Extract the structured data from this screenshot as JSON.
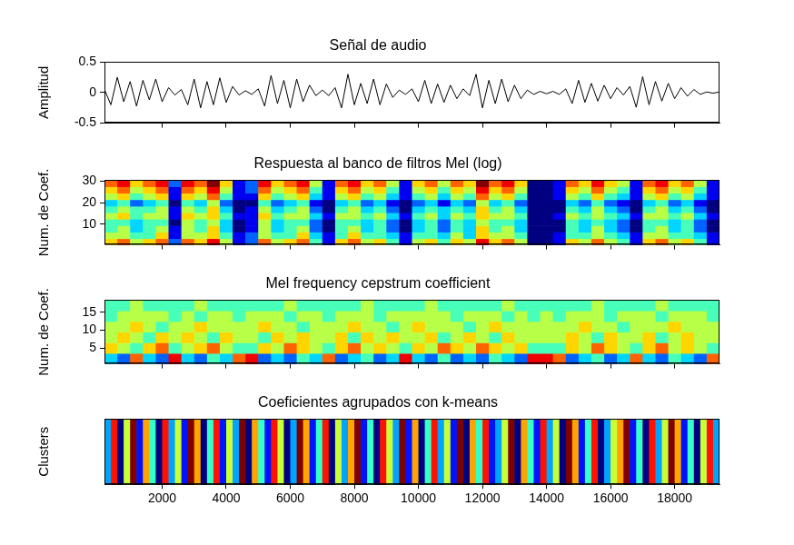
{
  "chart_data": [
    {
      "type": "line",
      "title": "Señal de audio",
      "y_label": "Amplitud",
      "color": "#000000",
      "x": [
        200,
        400,
        600,
        800,
        1000,
        1200,
        1400,
        1600,
        1800,
        2000,
        2200,
        2400,
        2600,
        2800,
        3000,
        3200,
        3400,
        3600,
        3800,
        4000,
        4200,
        4400,
        4600,
        4800,
        5000,
        5200,
        5400,
        5600,
        5800,
        6000,
        6200,
        6400,
        6600,
        6800,
        7000,
        7200,
        7400,
        7600,
        7800,
        8000,
        8200,
        8400,
        8600,
        8800,
        9000,
        9200,
        9400,
        9600,
        9800,
        10000,
        10200,
        10400,
        10600,
        10800,
        11000,
        11200,
        11400,
        11600,
        11800,
        12000,
        12200,
        12400,
        12600,
        12800,
        13000,
        13200,
        13400,
        13600,
        13800,
        14000,
        14200,
        14400,
        14600,
        14800,
        15000,
        15200,
        15400,
        15600,
        15800,
        16000,
        16200,
        16400,
        16600,
        16800,
        17000,
        17200,
        17400,
        17600,
        17800,
        18000,
        18200,
        18400,
        18600,
        18800,
        19000,
        19200,
        19400
      ],
      "values": [
        0.05,
        -0.2,
        0.25,
        -0.15,
        0.18,
        -0.22,
        0.2,
        -0.12,
        0.22,
        -0.15,
        0.08,
        -0.04,
        0.05,
        -0.2,
        0.22,
        -0.25,
        0.18,
        -0.2,
        0.24,
        -0.16,
        0.1,
        -0.04,
        0.03,
        -0.03,
        0.06,
        -0.22,
        0.28,
        -0.18,
        0.2,
        -0.25,
        0.22,
        -0.15,
        0.12,
        -0.05,
        0.04,
        -0.05,
        0.08,
        -0.25,
        0.3,
        -0.2,
        0.15,
        -0.18,
        0.22,
        -0.2,
        0.14,
        -0.08,
        0.04,
        -0.03,
        0.06,
        -0.15,
        0.2,
        -0.18,
        0.14,
        -0.16,
        0.12,
        -0.1,
        0.06,
        -0.05,
        0.3,
        -0.25,
        0.2,
        -0.18,
        0.22,
        -0.15,
        0.12,
        -0.1,
        0.04,
        -0.03,
        0.02,
        -0.02,
        0.02,
        -0.03,
        0.06,
        -0.18,
        0.2,
        -0.16,
        0.15,
        -0.14,
        0.12,
        -0.1,
        0.08,
        -0.04,
        0.1,
        -0.24,
        0.26,
        -0.2,
        0.18,
        -0.14,
        0.15,
        -0.1,
        0.08,
        -0.06,
        0.05,
        -0.03,
        0.01,
        -0.01,
        0.01
      ],
      "xlim": [
        200,
        19400
      ],
      "ylim": [
        -0.5,
        0.5
      ],
      "xticks": [
        2000,
        4000,
        6000,
        8000,
        10000,
        12000,
        14000,
        16000,
        18000
      ],
      "yticks": [
        -0.5,
        0,
        0.5
      ],
      "tick_labels": "y"
    },
    {
      "type": "heatmap",
      "title": "Respuesta al banco de filtros Mel (log)",
      "y_label": "Num. de Coef.",
      "color": "jet",
      "x_bins": [
        200,
        600,
        1000,
        1400,
        1800,
        2200,
        2600,
        3000,
        3400,
        3800,
        4200,
        4600,
        5000,
        5400,
        5800,
        6200,
        6600,
        7000,
        7400,
        7800,
        8200,
        8600,
        9000,
        9400,
        9800,
        10200,
        10600,
        11000,
        11400,
        11800,
        12200,
        12600,
        13000,
        13400,
        13800,
        14200,
        14600,
        15000,
        15400,
        15800,
        16200,
        16600,
        17000,
        17400,
        17800,
        18200,
        18600,
        19000,
        19400
      ],
      "y_bins": [
        0.5,
        3.5,
        6.5,
        9.5,
        12.5,
        15.5,
        18.5,
        21.5,
        24.5,
        27.5,
        30.5
      ],
      "cells": [
        [
          6,
          7,
          5,
          6,
          7,
          2,
          7,
          6,
          8,
          5,
          1,
          2,
          7,
          5,
          6,
          7,
          4,
          1,
          6,
          7,
          5,
          6,
          4,
          1,
          5,
          6,
          4,
          6,
          5,
          8,
          6,
          7,
          5,
          0,
          0,
          1,
          6,
          5,
          7,
          5,
          4,
          1,
          6,
          7,
          5,
          6,
          4,
          1
        ],
        [
          5,
          5,
          4,
          4,
          6,
          1,
          5,
          5,
          6,
          4,
          1,
          2,
          5,
          4,
          4,
          6,
          3,
          1,
          4,
          6,
          4,
          4,
          3,
          1,
          4,
          4,
          3,
          5,
          3,
          6,
          5,
          5,
          4,
          0,
          0,
          1,
          4,
          4,
          5,
          4,
          3,
          1,
          5,
          5,
          4,
          4,
          3,
          1
        ],
        [
          4,
          5,
          3,
          4,
          5,
          1,
          5,
          4,
          6,
          3,
          0,
          1,
          5,
          3,
          4,
          5,
          2,
          0,
          4,
          5,
          3,
          4,
          2,
          0,
          3,
          4,
          2,
          4,
          3,
          6,
          4,
          5,
          3,
          0,
          0,
          0,
          4,
          3,
          5,
          3,
          2,
          0,
          4,
          5,
          3,
          4,
          2,
          0
        ],
        [
          4,
          4,
          3,
          4,
          4,
          0,
          5,
          4,
          5,
          3,
          0,
          1,
          5,
          3,
          4,
          4,
          2,
          0,
          4,
          4,
          3,
          4,
          2,
          0,
          3,
          4,
          2,
          4,
          3,
          5,
          4,
          4,
          3,
          0,
          0,
          0,
          4,
          3,
          4,
          3,
          2,
          0,
          4,
          4,
          3,
          4,
          2,
          0
        ],
        [
          5,
          6,
          4,
          5,
          5,
          1,
          6,
          5,
          6,
          4,
          1,
          1,
          6,
          4,
          5,
          5,
          3,
          1,
          5,
          5,
          4,
          5,
          3,
          1,
          4,
          5,
          3,
          5,
          4,
          6,
          5,
          5,
          4,
          0,
          0,
          1,
          5,
          4,
          5,
          4,
          3,
          1,
          5,
          5,
          4,
          5,
          3,
          1
        ],
        [
          4,
          5,
          4,
          4,
          5,
          1,
          5,
          4,
          6,
          3,
          0,
          1,
          5,
          3,
          4,
          5,
          2,
          0,
          4,
          5,
          3,
          4,
          2,
          0,
          3,
          4,
          3,
          4,
          3,
          6,
          4,
          5,
          3,
          0,
          0,
          0,
          4,
          3,
          5,
          3,
          2,
          0,
          4,
          5,
          3,
          4,
          2,
          0
        ],
        [
          3,
          4,
          2,
          3,
          4,
          0,
          4,
          3,
          5,
          2,
          0,
          0,
          4,
          2,
          3,
          4,
          1,
          0,
          3,
          4,
          2,
          3,
          1,
          0,
          2,
          3,
          1,
          3,
          2,
          5,
          3,
          4,
          2,
          0,
          0,
          0,
          3,
          2,
          4,
          2,
          1,
          0,
          3,
          4,
          2,
          3,
          1,
          0
        ],
        [
          5,
          6,
          4,
          5,
          6,
          1,
          6,
          5,
          7,
          4,
          1,
          1,
          6,
          4,
          5,
          6,
          3,
          1,
          5,
          6,
          4,
          5,
          3,
          1,
          4,
          5,
          3,
          5,
          4,
          7,
          5,
          6,
          4,
          0,
          0,
          1,
          5,
          4,
          6,
          4,
          3,
          1,
          5,
          6,
          4,
          5,
          3,
          1
        ],
        [
          6,
          7,
          5,
          6,
          7,
          1,
          7,
          6,
          8,
          5,
          1,
          2,
          7,
          5,
          6,
          7,
          4,
          1,
          6,
          7,
          5,
          6,
          4,
          1,
          5,
          6,
          4,
          6,
          5,
          8,
          6,
          7,
          5,
          0,
          0,
          1,
          6,
          5,
          7,
          5,
          4,
          1,
          6,
          7,
          5,
          6,
          4,
          1
        ],
        [
          7,
          8,
          6,
          7,
          8,
          2,
          8,
          7,
          9,
          6,
          1,
          2,
          8,
          6,
          7,
          8,
          5,
          1,
          7,
          8,
          6,
          7,
          5,
          1,
          6,
          7,
          5,
          7,
          6,
          9,
          7,
          8,
          6,
          0,
          0,
          1,
          7,
          6,
          8,
          6,
          5,
          1,
          7,
          8,
          6,
          7,
          5,
          1
        ]
      ],
      "clim": [
        0,
        9
      ],
      "xlim": [
        200,
        19400
      ],
      "ylim": [
        0.5,
        30.5
      ],
      "xticks": [
        2000,
        4000,
        6000,
        8000,
        10000,
        12000,
        14000,
        16000,
        18000
      ],
      "yticks": [
        10,
        20,
        30
      ],
      "tick_labels": "y"
    },
    {
      "type": "heatmap",
      "title": "Mel frequency cepstrum coefficient",
      "y_label": "Num. de Coef.",
      "color": "jet",
      "x_bins": [
        200,
        600,
        1000,
        1400,
        1800,
        2200,
        2600,
        3000,
        3400,
        3800,
        4200,
        4600,
        5000,
        5400,
        5800,
        6200,
        6600,
        7000,
        7400,
        7800,
        8200,
        8600,
        9000,
        9400,
        9800,
        10200,
        10600,
        11000,
        11400,
        11800,
        12200,
        12600,
        13000,
        13400,
        13800,
        14200,
        14600,
        15000,
        15400,
        15800,
        16200,
        16600,
        17000,
        17400,
        17800,
        18200,
        18600,
        19000,
        19400
      ],
      "y_bins": [
        0.5,
        3.5,
        6.5,
        9.5,
        12.5,
        15.5,
        18.5
      ],
      "cells": [
        [
          3,
          2,
          7,
          3,
          2,
          8,
          3,
          2,
          4,
          3,
          7,
          8,
          2,
          3,
          2,
          4,
          3,
          7,
          2,
          3,
          4,
          2,
          3,
          8,
          3,
          2,
          4,
          2,
          3,
          2,
          4,
          3,
          2,
          8,
          8,
          7,
          2,
          3,
          4,
          2,
          3,
          7,
          3,
          2,
          4,
          3,
          2,
          7
        ],
        [
          6,
          5,
          4,
          6,
          7,
          4,
          5,
          6,
          7,
          5,
          4,
          4,
          6,
          5,
          7,
          6,
          5,
          4,
          6,
          7,
          5,
          6,
          5,
          4,
          6,
          5,
          7,
          6,
          5,
          7,
          6,
          5,
          6,
          4,
          4,
          4,
          6,
          5,
          7,
          6,
          5,
          4,
          6,
          7,
          5,
          6,
          5,
          4
        ],
        [
          5,
          6,
          5,
          4,
          6,
          5,
          6,
          5,
          4,
          6,
          5,
          5,
          4,
          6,
          5,
          6,
          5,
          5,
          6,
          4,
          6,
          5,
          6,
          5,
          5,
          6,
          4,
          5,
          6,
          5,
          4,
          6,
          5,
          5,
          5,
          5,
          6,
          5,
          4,
          6,
          5,
          5,
          6,
          4,
          5,
          6,
          5,
          5
        ],
        [
          5,
          5,
          6,
          5,
          4,
          5,
          5,
          6,
          5,
          5,
          5,
          5,
          6,
          5,
          5,
          4,
          5,
          5,
          5,
          6,
          5,
          5,
          4,
          5,
          6,
          5,
          5,
          5,
          4,
          5,
          6,
          5,
          5,
          5,
          5,
          5,
          5,
          6,
          5,
          5,
          4,
          5,
          5,
          5,
          6,
          5,
          5,
          5
        ],
        [
          4,
          5,
          5,
          5,
          5,
          4,
          5,
          4,
          5,
          5,
          4,
          5,
          5,
          5,
          4,
          5,
          5,
          4,
          5,
          5,
          5,
          4,
          5,
          5,
          5,
          5,
          5,
          4,
          5,
          5,
          5,
          4,
          5,
          4,
          5,
          4,
          5,
          5,
          5,
          4,
          5,
          5,
          5,
          4,
          5,
          5,
          5,
          4
        ],
        [
          4,
          4,
          5,
          4,
          4,
          4,
          4,
          5,
          4,
          4,
          4,
          4,
          4,
          4,
          5,
          4,
          4,
          4,
          4,
          4,
          5,
          4,
          4,
          4,
          4,
          5,
          4,
          4,
          4,
          4,
          4,
          5,
          4,
          4,
          4,
          4,
          4,
          4,
          5,
          4,
          4,
          4,
          4,
          5,
          4,
          4,
          4,
          4
        ]
      ],
      "clim": [
        0,
        9
      ],
      "xlim": [
        200,
        19400
      ],
      "ylim": [
        0.5,
        18.5
      ],
      "xticks": [
        2000,
        4000,
        6000,
        8000,
        10000,
        12000,
        14000,
        16000,
        18000
      ],
      "yticks": [
        5,
        10,
        15
      ],
      "tick_labels": "y"
    },
    {
      "type": "heatmap",
      "title": "Coeficientes agrupados con k-means",
      "y_label": "Clusters",
      "color": "jet",
      "x_bins": [
        200,
        400,
        600,
        800,
        1000,
        1200,
        1400,
        1600,
        1800,
        2000,
        2200,
        2400,
        2600,
        2800,
        3000,
        3200,
        3400,
        3600,
        3800,
        4000,
        4200,
        4400,
        4600,
        4800,
        5000,
        5200,
        5400,
        5600,
        5800,
        6000,
        6200,
        6400,
        6600,
        6800,
        7000,
        7200,
        7400,
        7600,
        7800,
        8000,
        8200,
        8400,
        8600,
        8800,
        9000,
        9200,
        9400,
        9600,
        9800,
        10000,
        10200,
        10400,
        10600,
        10800,
        11000,
        11200,
        11400,
        11600,
        11800,
        12000,
        12200,
        12400,
        12600,
        12800,
        13000,
        13200,
        13400,
        13600,
        13800,
        14000,
        14200,
        14400,
        14600,
        14800,
        15000,
        15200,
        15400,
        15600,
        15800,
        16000,
        16200,
        16400,
        16600,
        16800,
        17000,
        17200,
        17400,
        17600,
        17800,
        18000,
        18200,
        18400,
        18600,
        18800,
        19000,
        19200,
        19400
      ],
      "y_bins": [
        0,
        1
      ],
      "cells": [
        [
          3,
          7,
          1,
          5,
          8,
          2,
          6,
          4,
          1,
          7,
          3,
          5,
          2,
          8,
          6,
          1,
          4,
          7,
          2,
          5,
          3,
          8,
          1,
          6,
          4,
          2,
          7,
          5,
          1,
          3,
          8,
          6,
          2,
          4,
          7,
          1,
          5,
          3,
          6,
          8,
          2,
          4,
          1,
          7,
          5,
          3,
          8,
          2,
          6,
          1,
          4,
          7,
          3,
          5,
          2,
          8,
          1,
          6,
          4,
          7,
          2,
          3,
          5,
          8,
          1,
          6,
          4,
          2,
          7,
          3,
          5,
          1,
          8,
          6,
          2,
          4,
          7,
          1,
          3,
          5,
          6,
          8,
          2,
          4,
          1,
          7,
          3,
          5,
          8,
          6,
          2,
          4,
          1,
          5,
          7,
          3
        ]
      ],
      "clim": [
        1,
        8
      ],
      "xlim": [
        200,
        19400
      ],
      "ylim": [
        0,
        1
      ],
      "xticks": [
        2000,
        4000,
        6000,
        8000,
        10000,
        12000,
        14000,
        16000,
        18000
      ],
      "yticks": [],
      "tick_labels": "x"
    }
  ]
}
